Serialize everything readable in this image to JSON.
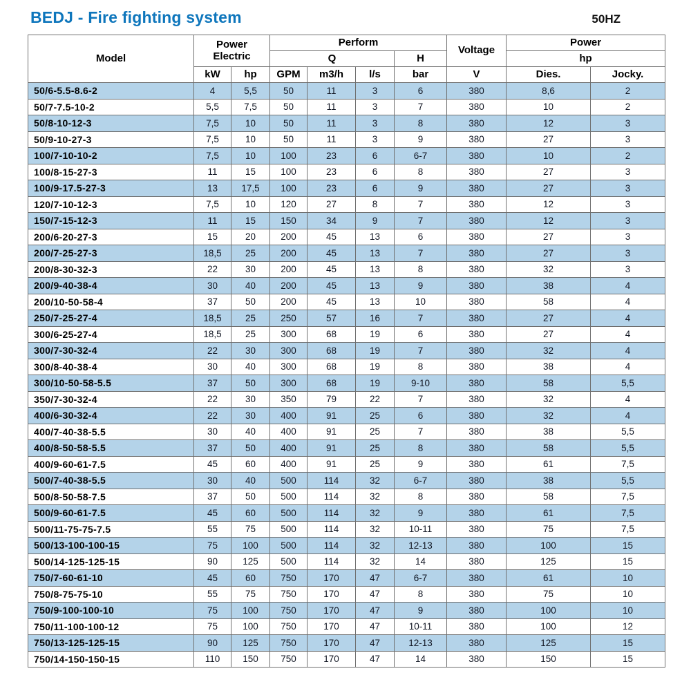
{
  "header": {
    "title": "BEDJ - Fire fighting system",
    "frequency": "50HZ"
  },
  "colors": {
    "title_blue": "#0e76bc",
    "row_alt_blue": "#b4d3e9",
    "grid_border": "#6e6e6e"
  },
  "table": {
    "head": {
      "model": "Model",
      "power_electric": [
        "Power",
        "Electric"
      ],
      "perform": "Perform",
      "q": "Q",
      "h": "H",
      "voltage": "Voltage",
      "power_right": "Power",
      "hp_right": "hp",
      "units": [
        "kW",
        "hp",
        "GPM",
        "m3/h",
        "l/s",
        "bar",
        "V",
        "Dies.",
        "Jocky."
      ]
    },
    "rows": [
      [
        "50/6-5.5-8.6-2",
        "4",
        "5,5",
        "50",
        "11",
        "3",
        "6",
        "380",
        "8,6",
        "2"
      ],
      [
        "50/7-7.5-10-2",
        "5,5",
        "7,5",
        "50",
        "11",
        "3",
        "7",
        "380",
        "10",
        "2"
      ],
      [
        "50/8-10-12-3",
        "7,5",
        "10",
        "50",
        "11",
        "3",
        "8",
        "380",
        "12",
        "3"
      ],
      [
        "50/9-10-27-3",
        "7,5",
        "10",
        "50",
        "11",
        "3",
        "9",
        "380",
        "27",
        "3"
      ],
      [
        "100/7-10-10-2",
        "7,5",
        "10",
        "100",
        "23",
        "6",
        "6-7",
        "380",
        "10",
        "2"
      ],
      [
        "100/8-15-27-3",
        "11",
        "15",
        "100",
        "23",
        "6",
        "8",
        "380",
        "27",
        "3"
      ],
      [
        "100/9-17.5-27-3",
        "13",
        "17,5",
        "100",
        "23",
        "6",
        "9",
        "380",
        "27",
        "3"
      ],
      [
        "120/7-10-12-3",
        "7,5",
        "10",
        "120",
        "27",
        "8",
        "7",
        "380",
        "12",
        "3"
      ],
      [
        "150/7-15-12-3",
        "11",
        "15",
        "150",
        "34",
        "9",
        "7",
        "380",
        "12",
        "3"
      ],
      [
        "200/6-20-27-3",
        "15",
        "20",
        "200",
        "45",
        "13",
        "6",
        "380",
        "27",
        "3"
      ],
      [
        "200/7-25-27-3",
        "18,5",
        "25",
        "200",
        "45",
        "13",
        "7",
        "380",
        "27",
        "3"
      ],
      [
        "200/8-30-32-3",
        "22",
        "30",
        "200",
        "45",
        "13",
        "8",
        "380",
        "32",
        "3"
      ],
      [
        "200/9-40-38-4",
        "30",
        "40",
        "200",
        "45",
        "13",
        "9",
        "380",
        "38",
        "4"
      ],
      [
        "200/10-50-58-4",
        "37",
        "50",
        "200",
        "45",
        "13",
        "10",
        "380",
        "58",
        "4"
      ],
      [
        "250/7-25-27-4",
        "18,5",
        "25",
        "250",
        "57",
        "16",
        "7",
        "380",
        "27",
        "4"
      ],
      [
        "300/6-25-27-4",
        "18,5",
        "25",
        "300",
        "68",
        "19",
        "6",
        "380",
        "27",
        "4"
      ],
      [
        "300/7-30-32-4",
        "22",
        "30",
        "300",
        "68",
        "19",
        "7",
        "380",
        "32",
        "4"
      ],
      [
        "300/8-40-38-4",
        "30",
        "40",
        "300",
        "68",
        "19",
        "8",
        "380",
        "38",
        "4"
      ],
      [
        "300/10-50-58-5.5",
        "37",
        "50",
        "300",
        "68",
        "19",
        "9-10",
        "380",
        "58",
        "5,5"
      ],
      [
        "350/7-30-32-4",
        "22",
        "30",
        "350",
        "79",
        "22",
        "7",
        "380",
        "32",
        "4"
      ],
      [
        "400/6-30-32-4",
        "22",
        "30",
        "400",
        "91",
        "25",
        "6",
        "380",
        "32",
        "4"
      ],
      [
        "400/7-40-38-5.5",
        "30",
        "40",
        "400",
        "91",
        "25",
        "7",
        "380",
        "38",
        "5,5"
      ],
      [
        "400/8-50-58-5.5",
        "37",
        "50",
        "400",
        "91",
        "25",
        "8",
        "380",
        "58",
        "5,5"
      ],
      [
        "400/9-60-61-7.5",
        "45",
        "60",
        "400",
        "91",
        "25",
        "9",
        "380",
        "61",
        "7,5"
      ],
      [
        "500/7-40-38-5.5",
        "30",
        "40",
        "500",
        "114",
        "32",
        "6-7",
        "380",
        "38",
        "5,5"
      ],
      [
        "500/8-50-58-7.5",
        "37",
        "50",
        "500",
        "114",
        "32",
        "8",
        "380",
        "58",
        "7,5"
      ],
      [
        "500/9-60-61-7.5",
        "45",
        "60",
        "500",
        "114",
        "32",
        "9",
        "380",
        "61",
        "7,5"
      ],
      [
        "500/11-75-75-7.5",
        "55",
        "75",
        "500",
        "114",
        "32",
        "10-11",
        "380",
        "75",
        "7,5"
      ],
      [
        "500/13-100-100-15",
        "75",
        "100",
        "500",
        "114",
        "32",
        "12-13",
        "380",
        "100",
        "15"
      ],
      [
        "500/14-125-125-15",
        "90",
        "125",
        "500",
        "114",
        "32",
        "14",
        "380",
        "125",
        "15"
      ],
      [
        "750/7-60-61-10",
        "45",
        "60",
        "750",
        "170",
        "47",
        "6-7",
        "380",
        "61",
        "10"
      ],
      [
        "750/8-75-75-10",
        "55",
        "75",
        "750",
        "170",
        "47",
        "8",
        "380",
        "75",
        "10"
      ],
      [
        "750/9-100-100-10",
        "75",
        "100",
        "750",
        "170",
        "47",
        "9",
        "380",
        "100",
        "10"
      ],
      [
        "750/11-100-100-12",
        "75",
        "100",
        "750",
        "170",
        "47",
        "10-11",
        "380",
        "100",
        "12"
      ],
      [
        "750/13-125-125-15",
        "90",
        "125",
        "750",
        "170",
        "47",
        "12-13",
        "380",
        "125",
        "15"
      ],
      [
        "750/14-150-150-15",
        "110",
        "150",
        "750",
        "170",
        "47",
        "14",
        "380",
        "150",
        "15"
      ]
    ]
  }
}
